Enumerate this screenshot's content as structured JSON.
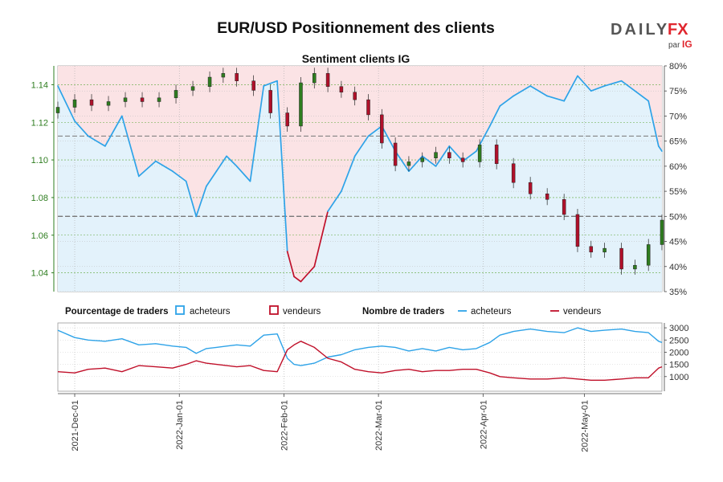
{
  "title": "EUR/USD Positionnement des clients",
  "logo": {
    "text_daily": "DAILY",
    "text_fx": "FX",
    "text_par": "par",
    "text_ig": "IG"
  },
  "colors": {
    "buyers": "#2ea3e8",
    "sellers": "#c0102a",
    "candle_up": "#2e7d1f",
    "candle_down": "#b0102a",
    "fill_buyers": "#e3f2fb",
    "fill_sellers": "#fbe3e5",
    "price_axis": "#2e7d1f"
  },
  "chart_data": [
    {
      "type": "area",
      "title": "Sentiment clients IG",
      "price_axis": {
        "ylim": [
          1.03,
          1.15
        ],
        "ticks": [
          "1.04",
          "1.06",
          "1.08",
          "1.10",
          "1.12",
          "1.14"
        ]
      },
      "percent_axis": {
        "ylim": [
          35,
          80
        ],
        "ticks": [
          "35%",
          "40%",
          "45%",
          "50%",
          "55%",
          "60%",
          "65%",
          "70%",
          "75%",
          "80%"
        ]
      },
      "reference_lines": [
        {
          "axis": "percent",
          "value": 50
        },
        {
          "axis": "percent",
          "value": 66
        }
      ],
      "x_range": [
        "2021-11-26",
        "2022-05-24"
      ],
      "x_ticks": [
        "2021-Dec-01",
        "2022-Jan-01",
        "2022-Feb-01",
        "2022-Mar-01",
        "2022-Apr-01",
        "2022-May-01"
      ],
      "series": [
        {
          "name": "acheteurs",
          "unit": "%",
          "dates": [
            "2021-11-26",
            "2021-12-01",
            "2021-12-05",
            "2021-12-10",
            "2021-12-15",
            "2021-12-20",
            "2021-12-25",
            "2021-12-30",
            "2022-01-03",
            "2022-01-06",
            "2022-01-09",
            "2022-01-12",
            "2022-01-15",
            "2022-01-18",
            "2022-01-22",
            "2022-01-26",
            "2022-01-30",
            "2022-02-02",
            "2022-02-04",
            "2022-02-06",
            "2022-02-10",
            "2022-02-14",
            "2022-02-18",
            "2022-02-22",
            "2022-02-26",
            "2022-03-02",
            "2022-03-06",
            "2022-03-10",
            "2022-03-14",
            "2022-03-18",
            "2022-03-22",
            "2022-03-26",
            "2022-03-30",
            "2022-04-03",
            "2022-04-06",
            "2022-04-10",
            "2022-04-15",
            "2022-04-20",
            "2022-04-25",
            "2022-04-29",
            "2022-05-03",
            "2022-05-07",
            "2022-05-12",
            "2022-05-16",
            "2022-05-20",
            "2022-05-23",
            "2022-05-24"
          ],
          "values": [
            76,
            69,
            66,
            64,
            70,
            58,
            61,
            59,
            57,
            50,
            56,
            59,
            62,
            60,
            57,
            76,
            77,
            43,
            38,
            37,
            40,
            51,
            55,
            62,
            66,
            68,
            63,
            59,
            62,
            60,
            64,
            61,
            63,
            68,
            72,
            74,
            76,
            74,
            73,
            78,
            75,
            76,
            77,
            75,
            73,
            64,
            63
          ]
        },
        {
          "name": "vendeurs",
          "unit": "%",
          "dates": [
            "2021-11-26",
            "2021-12-01",
            "2021-12-05",
            "2021-12-10",
            "2021-12-15",
            "2021-12-20",
            "2021-12-25",
            "2021-12-30",
            "2022-01-03",
            "2022-01-06",
            "2022-01-09",
            "2022-01-12",
            "2022-01-15",
            "2022-01-18",
            "2022-01-22",
            "2022-01-26",
            "2022-01-30",
            "2022-02-02",
            "2022-02-04",
            "2022-02-06",
            "2022-02-10",
            "2022-02-14",
            "2022-02-18",
            "2022-02-22",
            "2022-02-26",
            "2022-03-02",
            "2022-03-06",
            "2022-03-10",
            "2022-03-14",
            "2022-03-18",
            "2022-03-22",
            "2022-03-26",
            "2022-03-30",
            "2022-04-03",
            "2022-04-06",
            "2022-04-10",
            "2022-04-15",
            "2022-04-20",
            "2022-04-25",
            "2022-04-29",
            "2022-05-03",
            "2022-05-07",
            "2022-05-12",
            "2022-05-16",
            "2022-05-20",
            "2022-05-23",
            "2022-05-24"
          ],
          "values": [
            24,
            31,
            34,
            36,
            30,
            42,
            39,
            41,
            43,
            50,
            44,
            41,
            38,
            40,
            43,
            24,
            23,
            57,
            62,
            63,
            60,
            49,
            45,
            38,
            34,
            32,
            37,
            41,
            38,
            40,
            36,
            39,
            37,
            32,
            28,
            26,
            24,
            26,
            27,
            22,
            25,
            24,
            23,
            25,
            27,
            36,
            37
          ]
        },
        {
          "name": "EUR/USD",
          "type": "candlestick",
          "dates": [
            "2021-11-26",
            "2021-12-01",
            "2021-12-06",
            "2021-12-11",
            "2021-12-16",
            "2021-12-21",
            "2021-12-26",
            "2021-12-31",
            "2022-01-05",
            "2022-01-10",
            "2022-01-14",
            "2022-01-18",
            "2022-01-23",
            "2022-01-28",
            "2022-02-02",
            "2022-02-06",
            "2022-02-10",
            "2022-02-14",
            "2022-02-18",
            "2022-02-22",
            "2022-02-26",
            "2022-03-02",
            "2022-03-06",
            "2022-03-10",
            "2022-03-14",
            "2022-03-18",
            "2022-03-22",
            "2022-03-26",
            "2022-03-31",
            "2022-04-05",
            "2022-04-10",
            "2022-04-15",
            "2022-04-20",
            "2022-04-25",
            "2022-04-29",
            "2022-05-03",
            "2022-05-07",
            "2022-05-12",
            "2022-05-16",
            "2022-05-20",
            "2022-05-24"
          ],
          "close": [
            1.128,
            1.132,
            1.129,
            1.131,
            1.133,
            1.131,
            1.133,
            1.137,
            1.139,
            1.144,
            1.146,
            1.142,
            1.137,
            1.125,
            1.118,
            1.141,
            1.146,
            1.139,
            1.136,
            1.132,
            1.124,
            1.109,
            1.097,
            1.099,
            1.101,
            1.104,
            1.101,
            1.099,
            1.108,
            1.098,
            1.088,
            1.082,
            1.079,
            1.071,
            1.054,
            1.051,
            1.053,
            1.042,
            1.044,
            1.055,
            1.068
          ]
        }
      ],
      "legend": [
        {
          "group": "Pourcentage de traders",
          "items": [
            "acheteurs",
            "vendeurs"
          ]
        },
        {
          "group": "Nombre de traders",
          "items": [
            "acheteurs",
            "vendeurs"
          ]
        }
      ]
    },
    {
      "type": "line",
      "title": "",
      "y_axis": {
        "ylim": [
          400,
          3200
        ],
        "ticks": [
          "1000",
          "1500",
          "2000",
          "2500",
          "3000"
        ]
      },
      "series": [
        {
          "name": "acheteurs",
          "dates": [
            "2021-11-26",
            "2021-12-01",
            "2021-12-05",
            "2021-12-10",
            "2021-12-15",
            "2021-12-20",
            "2021-12-25",
            "2021-12-30",
            "2022-01-03",
            "2022-01-06",
            "2022-01-09",
            "2022-01-12",
            "2022-01-15",
            "2022-01-18",
            "2022-01-22",
            "2022-01-26",
            "2022-01-30",
            "2022-02-02",
            "2022-02-04",
            "2022-02-06",
            "2022-02-10",
            "2022-02-14",
            "2022-02-18",
            "2022-02-22",
            "2022-02-26",
            "2022-03-02",
            "2022-03-06",
            "2022-03-10",
            "2022-03-14",
            "2022-03-18",
            "2022-03-22",
            "2022-03-26",
            "2022-03-30",
            "2022-04-03",
            "2022-04-06",
            "2022-04-10",
            "2022-04-15",
            "2022-04-20",
            "2022-04-25",
            "2022-04-29",
            "2022-05-03",
            "2022-05-07",
            "2022-05-12",
            "2022-05-16",
            "2022-05-20",
            "2022-05-23",
            "2022-05-24"
          ],
          "values": [
            2900,
            2600,
            2500,
            2450,
            2550,
            2300,
            2350,
            2250,
            2200,
            1950,
            2150,
            2200,
            2250,
            2300,
            2250,
            2700,
            2750,
            1750,
            1500,
            1450,
            1550,
            1800,
            1900,
            2100,
            2200,
            2250,
            2200,
            2050,
            2150,
            2050,
            2200,
            2100,
            2150,
            2400,
            2700,
            2850,
            2950,
            2850,
            2800,
            3000,
            2850,
            2900,
            2950,
            2850,
            2800,
            2450,
            2400
          ]
        },
        {
          "name": "vendeurs",
          "dates": [
            "2021-11-26",
            "2021-12-01",
            "2021-12-05",
            "2021-12-10",
            "2021-12-15",
            "2021-12-20",
            "2021-12-25",
            "2021-12-30",
            "2022-01-03",
            "2022-01-06",
            "2022-01-09",
            "2022-01-12",
            "2022-01-15",
            "2022-01-18",
            "2022-01-22",
            "2022-01-26",
            "2022-01-30",
            "2022-02-02",
            "2022-02-04",
            "2022-02-06",
            "2022-02-10",
            "2022-02-14",
            "2022-02-18",
            "2022-02-22",
            "2022-02-26",
            "2022-03-02",
            "2022-03-06",
            "2022-03-10",
            "2022-03-14",
            "2022-03-18",
            "2022-03-22",
            "2022-03-26",
            "2022-03-30",
            "2022-04-03",
            "2022-04-06",
            "2022-04-10",
            "2022-04-15",
            "2022-04-20",
            "2022-04-25",
            "2022-04-29",
            "2022-05-03",
            "2022-05-07",
            "2022-05-12",
            "2022-05-16",
            "2022-05-20",
            "2022-05-23",
            "2022-05-24"
          ],
          "values": [
            1200,
            1150,
            1300,
            1350,
            1200,
            1450,
            1400,
            1350,
            1500,
            1650,
            1550,
            1500,
            1450,
            1400,
            1450,
            1250,
            1200,
            2100,
            2300,
            2450,
            2200,
            1750,
            1600,
            1300,
            1200,
            1150,
            1250,
            1300,
            1200,
            1250,
            1250,
            1300,
            1300,
            1150,
            1000,
            950,
            900,
            900,
            950,
            900,
            850,
            850,
            900,
            950,
            950,
            1350,
            1400
          ]
        }
      ]
    }
  ]
}
